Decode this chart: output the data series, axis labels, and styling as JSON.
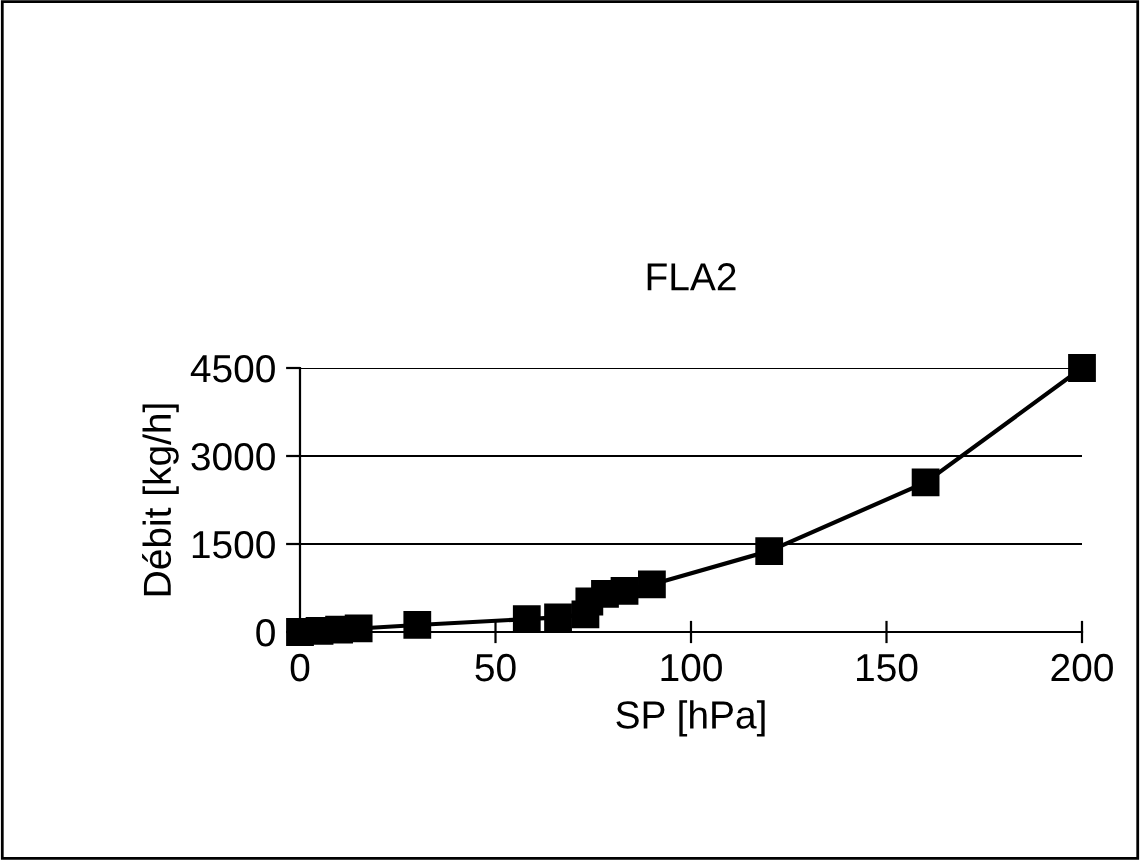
{
  "chart_data": {
    "type": "line",
    "title": "FLA2",
    "xlabel": "SP [hPa]",
    "ylabel": "Débit [kg/h]",
    "series": [
      {
        "color": "#000000",
        "x": [
          0,
          5,
          10,
          15,
          30,
          58,
          66,
          73,
          74,
          78,
          83,
          90,
          120,
          160,
          200
        ],
        "values": [
          0,
          20,
          40,
          60,
          120,
          220,
          250,
          300,
          520,
          650,
          700,
          810,
          1380,
          2550,
          4500
        ]
      }
    ],
    "xlim": [
      0,
      200
    ],
    "xticks": [
      0,
      50,
      100,
      150,
      200
    ],
    "ylim": [
      0,
      4500
    ],
    "yticks": [
      0,
      1500,
      3000,
      4500
    ],
    "grid": "y",
    "marker": "square",
    "line_style": "solid"
  }
}
